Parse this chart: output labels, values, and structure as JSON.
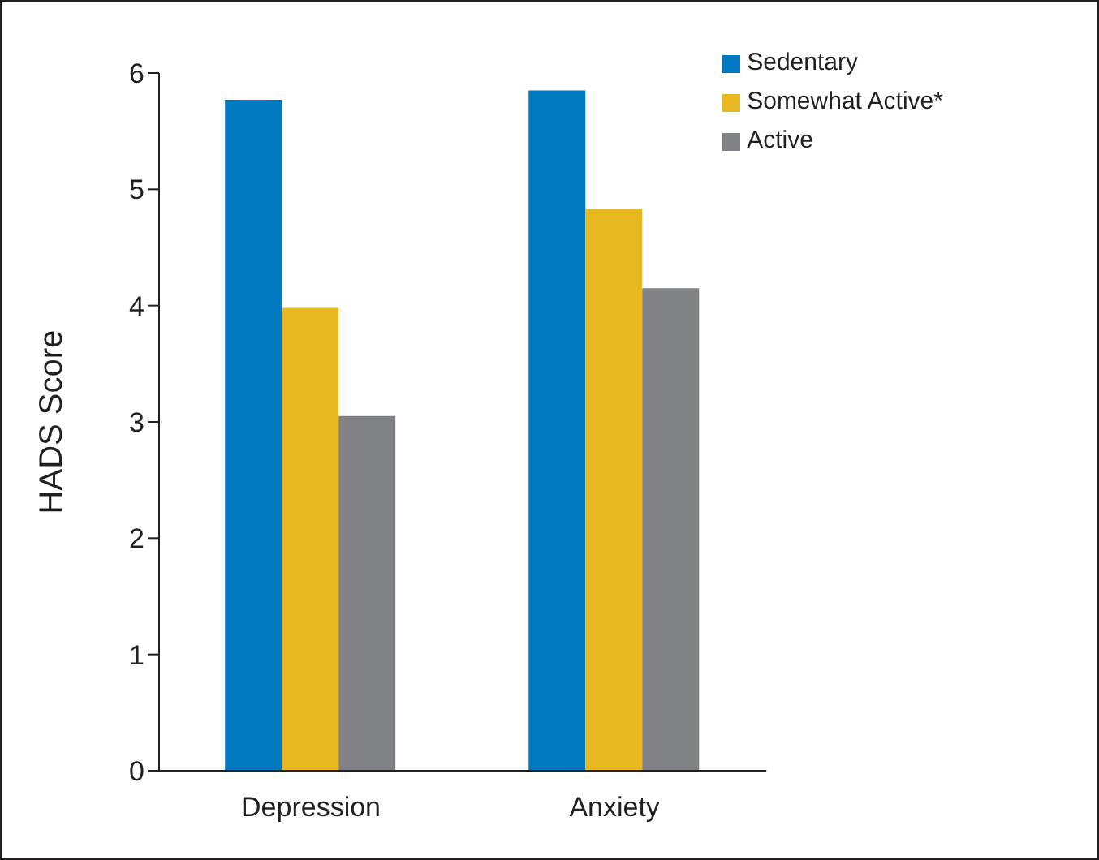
{
  "chart_data": {
    "type": "bar",
    "ylabel": "HADS Score",
    "categories": [
      "Depression",
      "Anxiety"
    ],
    "series": [
      {
        "name": "Sedentary",
        "color": "#0079c1",
        "values": [
          5.77,
          5.85
        ]
      },
      {
        "name": "Somewhat Active*",
        "color": "#e8b820",
        "values": [
          3.98,
          4.83
        ]
      },
      {
        "name": "Active",
        "color": "#808285",
        "values": [
          3.05,
          4.15
        ]
      }
    ],
    "ylim": [
      0,
      6
    ],
    "yticks": [
      0,
      1,
      2,
      3,
      4,
      5,
      6
    ],
    "grid": false,
    "legend": "top right"
  }
}
